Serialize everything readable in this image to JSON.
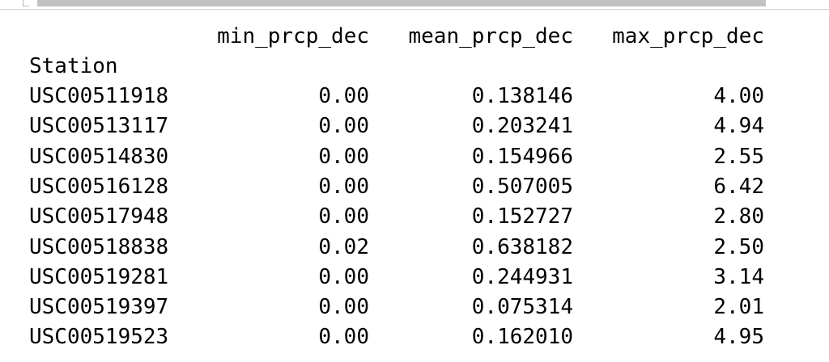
{
  "columns": {
    "min": "min_prcp_dec",
    "mean": "mean_prcp_dec",
    "max": "max_prcp_dec"
  },
  "index_name": "Station",
  "rows": [
    {
      "station": "USC00511918",
      "min": "0.00",
      "mean": "0.138146",
      "max": "4.00"
    },
    {
      "station": "USC00513117",
      "min": "0.00",
      "mean": "0.203241",
      "max": "4.94"
    },
    {
      "station": "USC00514830",
      "min": "0.00",
      "mean": "0.154966",
      "max": "2.55"
    },
    {
      "station": "USC00516128",
      "min": "0.00",
      "mean": "0.507005",
      "max": "6.42"
    },
    {
      "station": "USC00517948",
      "min": "0.00",
      "mean": "0.152727",
      "max": "2.80"
    },
    {
      "station": "USC00518838",
      "min": "0.02",
      "mean": "0.638182",
      "max": "2.50"
    },
    {
      "station": "USC00519281",
      "min": "0.00",
      "mean": "0.244931",
      "max": "3.14"
    },
    {
      "station": "USC00519397",
      "min": "0.00",
      "mean": "0.075314",
      "max": "2.01"
    },
    {
      "station": "USC00519523",
      "min": "0.00",
      "mean": "0.162010",
      "max": "4.95"
    }
  ]
}
